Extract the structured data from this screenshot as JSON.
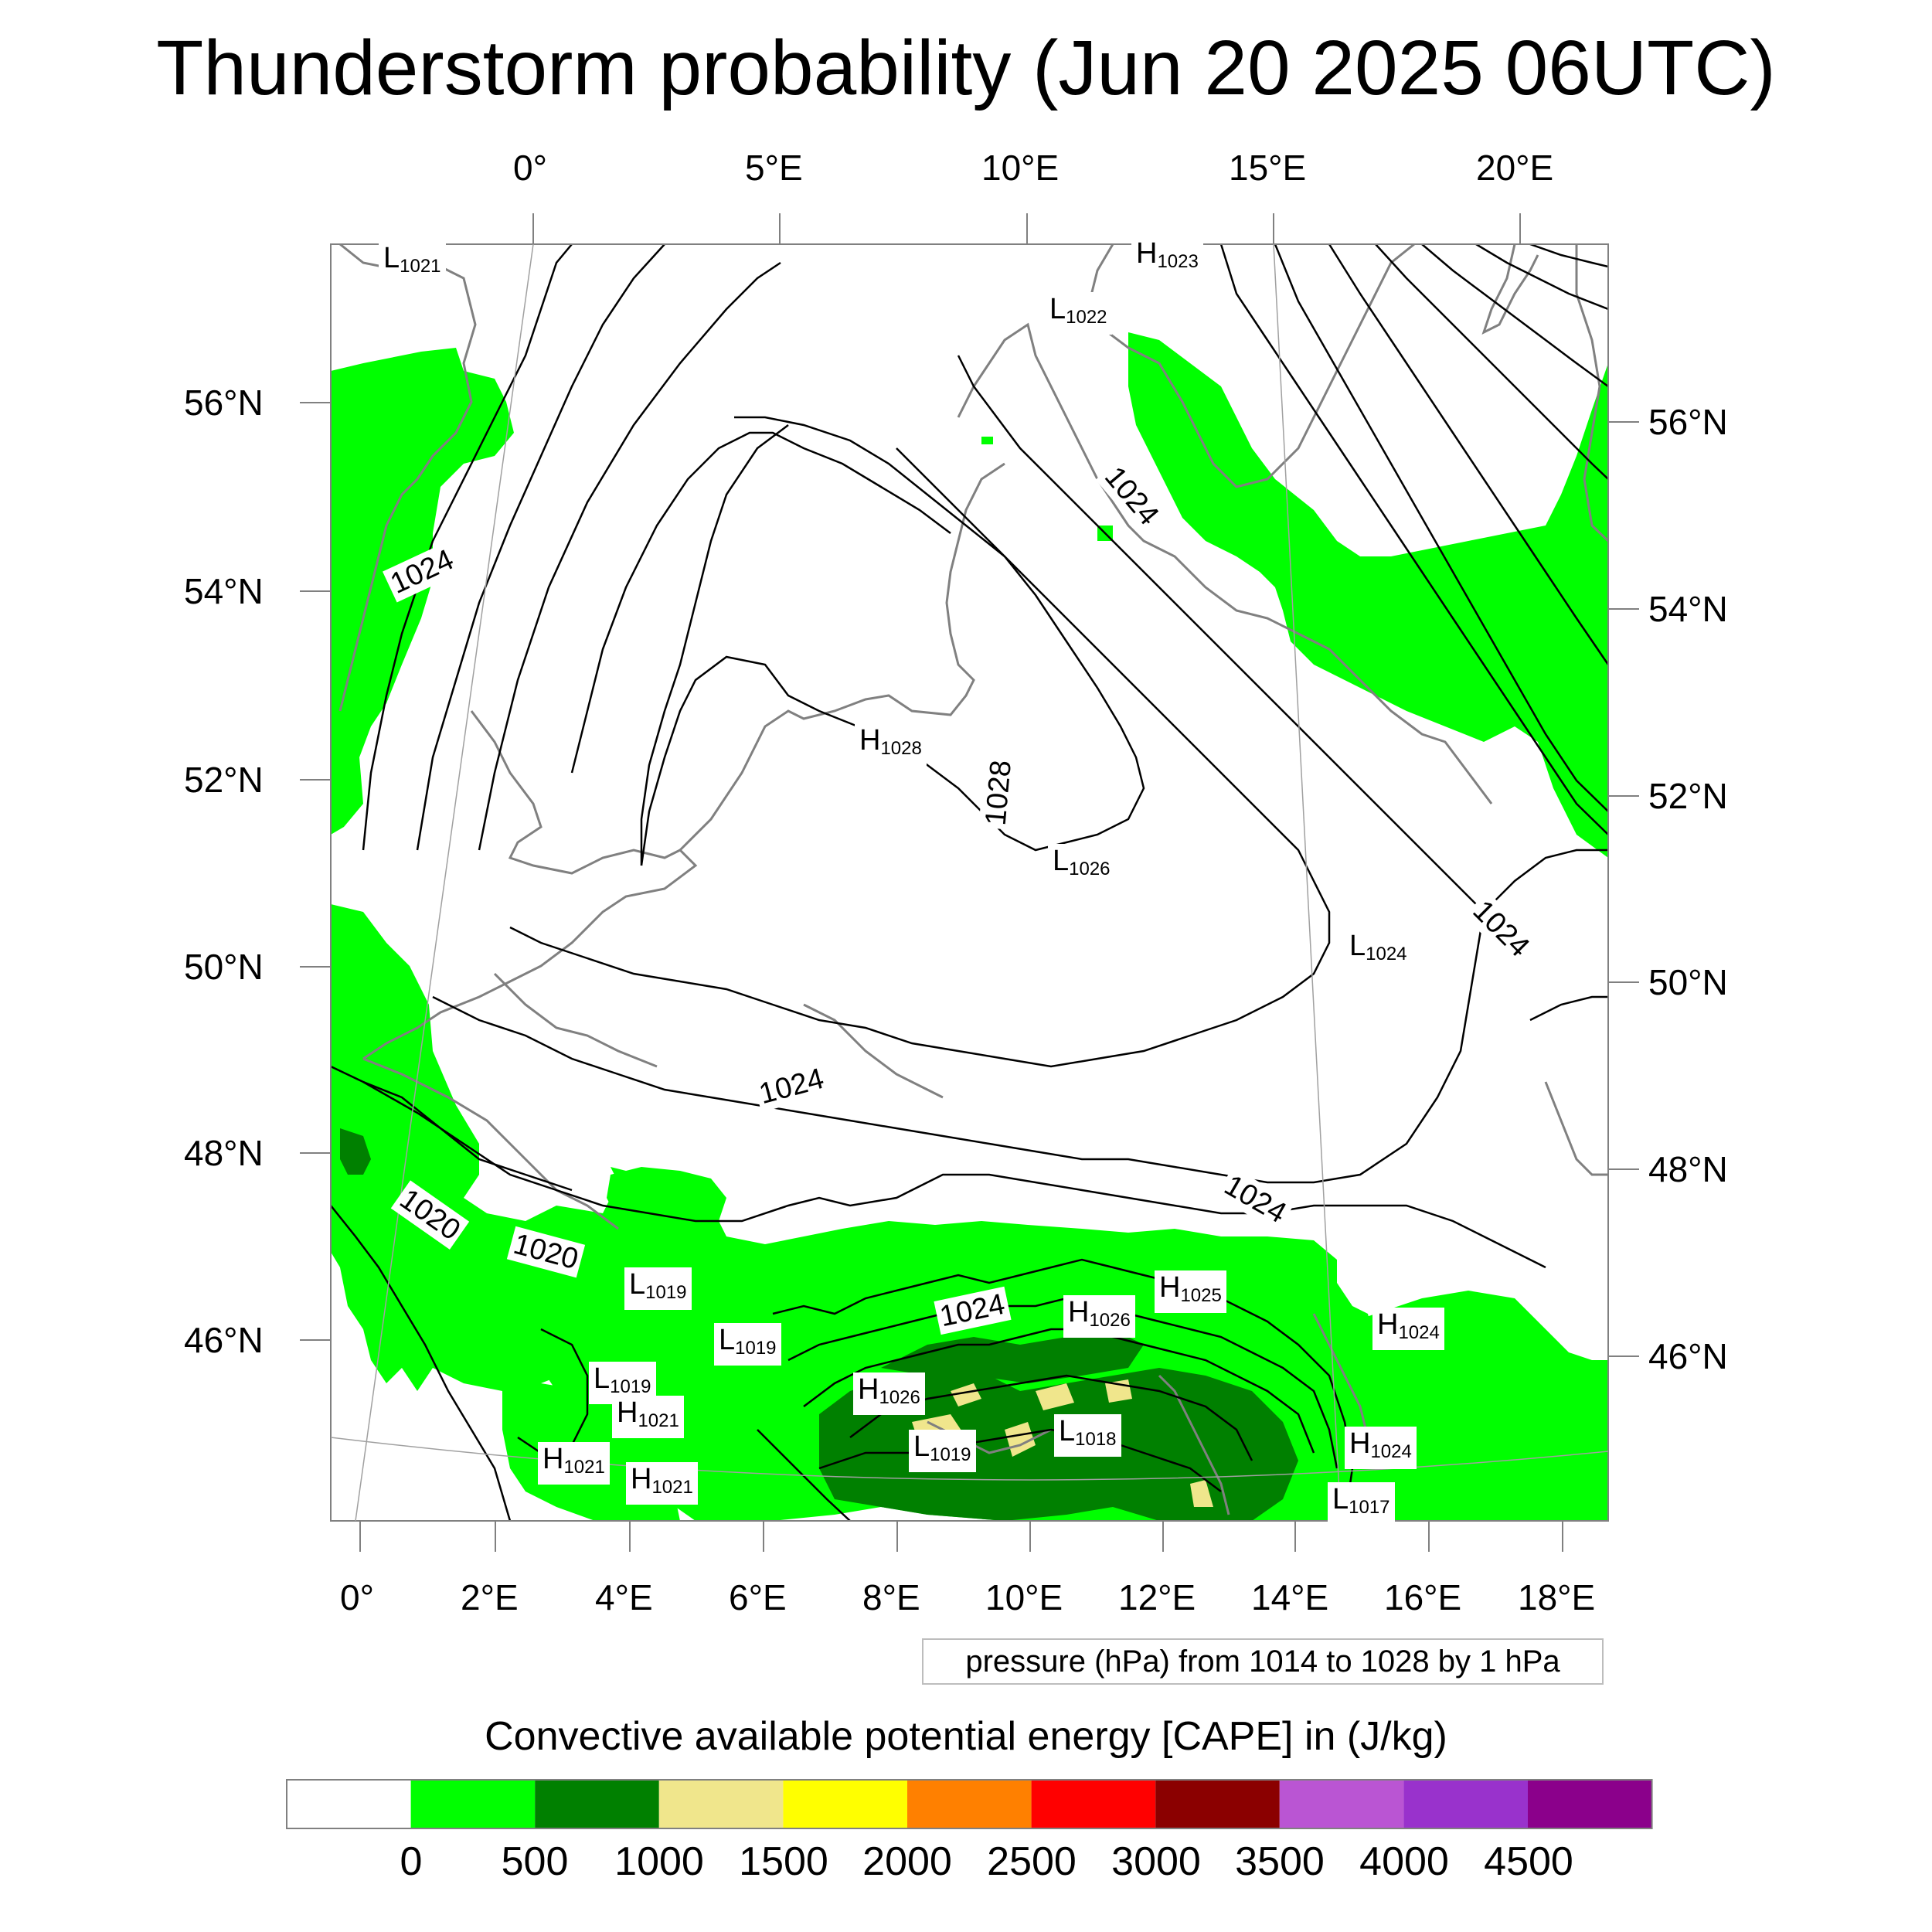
{
  "title": "Thunderstorm probability (Jun 20 2025 06UTC)",
  "top_lon_labels": [
    "0°",
    "5°E",
    "10°E",
    "15°E",
    "20°E"
  ],
  "bottom_lon_labels": [
    "0°",
    "2°E",
    "4°E",
    "6°E",
    "8°E",
    "10°E",
    "12°E",
    "14°E",
    "16°E",
    "18°E"
  ],
  "left_lat_labels": [
    "56°N",
    "54°N",
    "52°N",
    "50°N",
    "48°N",
    "46°N"
  ],
  "right_lat_labels": [
    "56°N",
    "54°N",
    "52°N",
    "50°N",
    "48°N",
    "46°N"
  ],
  "pressure_info": "pressure (hPa) from 1014 to 1028 by 1 hPa",
  "colorbar": {
    "title": "Convective available potential energy [CAPE] in (J/kg)",
    "colors": [
      "#ffffff",
      "#00ff00",
      "#008000",
      "#f0e68c",
      "#ffff00",
      "#ff8000",
      "#ff0000",
      "#8b0000",
      "#ba55d3",
      "#9932cc",
      "#8b008b"
    ],
    "labels": [
      "0",
      "500",
      "1000",
      "1500",
      "2000",
      "2500",
      "3000",
      "3500",
      "4000",
      "4500"
    ]
  },
  "contour_labels": [
    "1024",
    "1024",
    "1028",
    "1024",
    "1024",
    "1024",
    "1020",
    "1020",
    "1024"
  ],
  "pressure_centers": [
    {
      "type": "L",
      "value": "1021"
    },
    {
      "type": "H",
      "value": "1023"
    },
    {
      "type": "L",
      "value": "1022"
    },
    {
      "type": "H",
      "value": "1028"
    },
    {
      "type": "L",
      "value": "1026"
    },
    {
      "type": "L",
      "value": "1024"
    },
    {
      "type": "L",
      "value": "1019"
    },
    {
      "type": "L",
      "value": "1019"
    },
    {
      "type": "L",
      "value": "1019"
    },
    {
      "type": "H",
      "value": "1021"
    },
    {
      "type": "H",
      "value": "1021"
    },
    {
      "type": "H",
      "value": "1021"
    },
    {
      "type": "H",
      "value": "1026"
    },
    {
      "type": "L",
      "value": "1019"
    },
    {
      "type": "H",
      "value": "1026"
    },
    {
      "type": "H",
      "value": "1025"
    },
    {
      "type": "L",
      "value": "1018"
    },
    {
      "type": "H",
      "value": "1024"
    },
    {
      "type": "H",
      "value": "1024"
    },
    {
      "type": "L",
      "value": "1017"
    }
  ],
  "colors": {
    "cape_low": "#00ff00",
    "cape_mid": "#008000",
    "cape_high": "#f0e68c",
    "isobar": "#000000",
    "coast": "#808080"
  }
}
